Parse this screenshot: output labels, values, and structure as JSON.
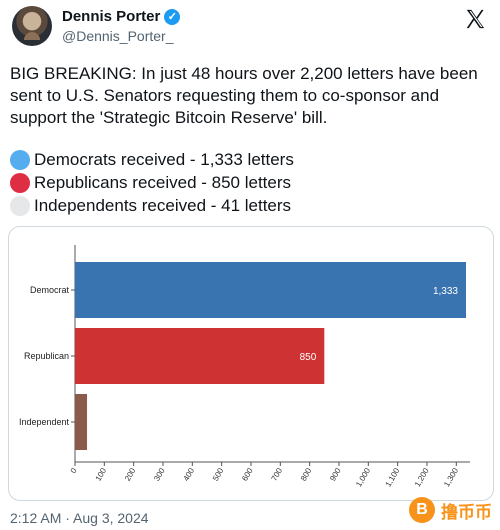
{
  "author": {
    "display_name": "Dennis Porter",
    "handle": "@Dennis_Porter_",
    "verified_icon": "verified-badge-icon"
  },
  "tweet": {
    "text": "BIG BREAKING: In just 48 hours over 2,200 letters have been sent to U.S. Senators requesting them to co-sponsor and support the 'Strategic Bitcoin Reserve' bill.",
    "legend": [
      {
        "label": "Democrats received - 1,333 letters",
        "color": "#55acee"
      },
      {
        "label": "Republicans received - 850 letters",
        "color": "#dd2e44"
      },
      {
        "label": "Independents received - 41 letters",
        "color": "#e6e7e8"
      }
    ],
    "timestamp": "2:12 AM · Aug 3, 2024"
  },
  "watermark": {
    "text": "撸币币",
    "icon": "bitcoin-coin-icon",
    "coin_glyph": "B"
  },
  "colors": {
    "democrat_bar": "#3a74b0",
    "republican_bar": "#cf3232",
    "independent_bar": "#8a5a4a"
  },
  "chart_data": {
    "type": "bar",
    "orientation": "horizontal",
    "categories": [
      "Democrat",
      "Republican",
      "Independent"
    ],
    "values": [
      1333,
      850,
      41
    ],
    "data_labels": [
      "1,333",
      "850",
      ""
    ],
    "bar_colors": [
      "#3a74b0",
      "#cf3232",
      "#8a5a4a"
    ],
    "xlim": [
      0,
      1333
    ],
    "xticks": [
      0,
      100,
      200,
      300,
      400,
      500,
      600,
      700,
      800,
      900,
      1000,
      1100,
      1200,
      1300
    ],
    "xtick_labels": [
      "0",
      "100",
      "200",
      "300",
      "400",
      "500",
      "600",
      "700",
      "800",
      "900",
      "1,000",
      "1,100",
      "1,200",
      "1,300"
    ],
    "title": "",
    "xlabel": "",
    "ylabel": "",
    "grid": false
  }
}
